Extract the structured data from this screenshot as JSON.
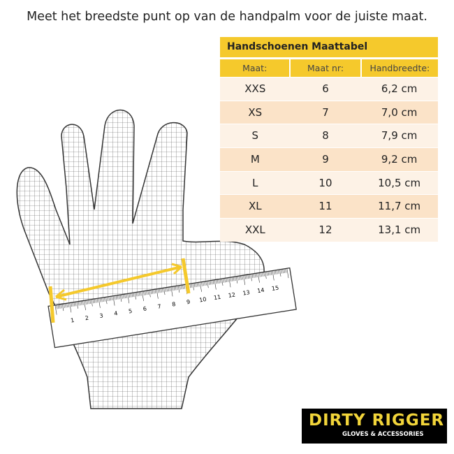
{
  "headline": "Meet het breedste punt op van de handpalm voor de juiste maat.",
  "table": {
    "title": "Handschoenen Maattabel",
    "headers": [
      "Maat:",
      "Maat nr:",
      "Handbreedte:"
    ],
    "rows": [
      [
        "XXS",
        "6",
        "6,2 cm"
      ],
      [
        "XS",
        "7",
        "7,0 cm"
      ],
      [
        "S",
        "8",
        "7,9 cm"
      ],
      [
        "M",
        "9",
        "9,2 cm"
      ],
      [
        "L",
        "10",
        "10,5 cm"
      ],
      [
        "XL",
        "11",
        "11,7 cm"
      ],
      [
        "XXL",
        "12",
        "13,1 cm"
      ]
    ]
  },
  "ruler": {
    "labels": [
      "1",
      "2",
      "3",
      "4",
      "5",
      "6",
      "7",
      "8",
      "9",
      "10",
      "11",
      "12",
      "13",
      "14",
      "15"
    ]
  },
  "logo": {
    "name": "DIRTY RIGGER",
    "tagline": "GLOVES & ACCESSORIES"
  },
  "colors": {
    "accent": "#f5c92c",
    "row_light": "#fdf2e6",
    "row_dark": "#fbe3c8"
  }
}
